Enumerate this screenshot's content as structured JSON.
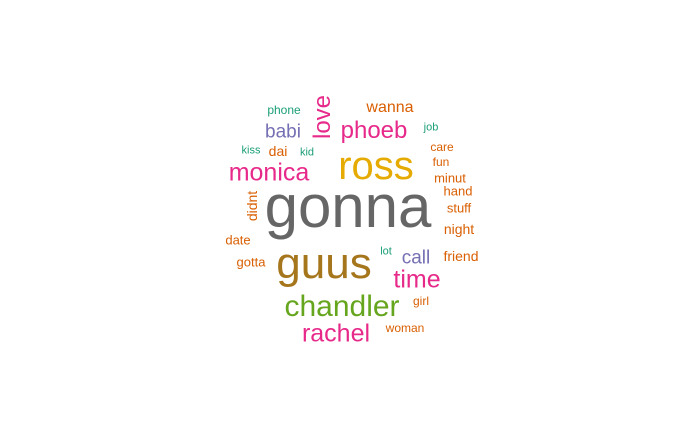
{
  "chart_data": {
    "type": "wordcloud",
    "words": [
      {
        "text": "gonna",
        "weight": 100,
        "color": "#666666"
      },
      {
        "text": "ross",
        "weight": 62,
        "color": "#e6ab02"
      },
      {
        "text": "guus",
        "weight": 58,
        "color": "#a6761d"
      },
      {
        "text": "chandler",
        "weight": 44,
        "color": "#66a61e"
      },
      {
        "text": "rachel",
        "weight": 38,
        "color": "#e7298a"
      },
      {
        "text": "monica",
        "weight": 38,
        "color": "#e7298a"
      },
      {
        "text": "time",
        "weight": 36,
        "color": "#e7298a"
      },
      {
        "text": "phoeb",
        "weight": 34,
        "color": "#e7298a"
      },
      {
        "text": "love",
        "weight": 34,
        "color": "#e7298a"
      },
      {
        "text": "babi",
        "weight": 24,
        "color": "#7570b3"
      },
      {
        "text": "call",
        "weight": 24,
        "color": "#7570b3"
      },
      {
        "text": "wanna",
        "weight": 22,
        "color": "#d95f02"
      },
      {
        "text": "friend",
        "weight": 18,
        "color": "#d95f02"
      },
      {
        "text": "didnt",
        "weight": 18,
        "color": "#d95f02"
      },
      {
        "text": "night",
        "weight": 18,
        "color": "#d95f02"
      },
      {
        "text": "dai",
        "weight": 18,
        "color": "#d95f02"
      },
      {
        "text": "stuff",
        "weight": 16,
        "color": "#d95f02"
      },
      {
        "text": "minut",
        "weight": 16,
        "color": "#d95f02"
      },
      {
        "text": "hand",
        "weight": 16,
        "color": "#d95f02"
      },
      {
        "text": "date",
        "weight": 16,
        "color": "#d95f02"
      },
      {
        "text": "gotta",
        "weight": 15,
        "color": "#d95f02"
      },
      {
        "text": "fun",
        "weight": 14,
        "color": "#d95f02"
      },
      {
        "text": "care",
        "weight": 14,
        "color": "#d95f02"
      },
      {
        "text": "woman",
        "weight": 14,
        "color": "#d95f02"
      },
      {
        "text": "girl",
        "weight": 14,
        "color": "#d95f02"
      },
      {
        "text": "phone",
        "weight": 14,
        "color": "#1b9e77"
      },
      {
        "text": "job",
        "weight": 13,
        "color": "#1b9e77"
      },
      {
        "text": "lot",
        "weight": 13,
        "color": "#1b9e77"
      },
      {
        "text": "kiss",
        "weight": 13,
        "color": "#1b9e77"
      },
      {
        "text": "kid",
        "weight": 13,
        "color": "#1b9e77"
      }
    ]
  }
}
